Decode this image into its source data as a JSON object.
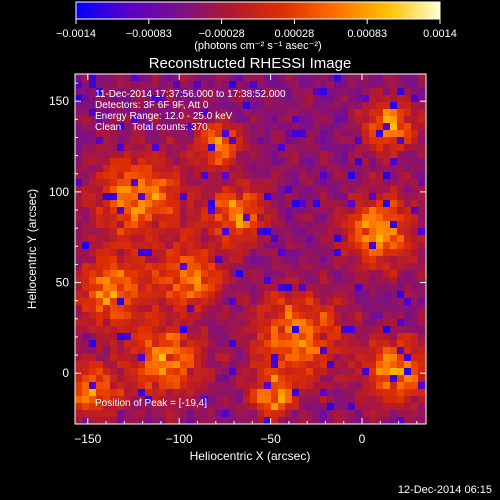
{
  "chart_data": {
    "type": "heatmap",
    "title": "Reconstructed RHESSI Image",
    "xlabel": "Heliocentric X (arcsec)",
    "ylabel": "Heliocentric Y (arcsec)",
    "x_range": [
      -157,
      35
    ],
    "y_range": [
      -28,
      165
    ],
    "x_ticks": [
      -150,
      -100,
      -50,
      0
    ],
    "y_ticks": [
      0,
      50,
      100,
      150
    ],
    "x_tick_labels": [
      "−150",
      "−100",
      "−50",
      "0"
    ],
    "y_tick_labels": [
      "0",
      "50",
      "100",
      "150"
    ],
    "colorbar": {
      "range": [
        -0.0014,
        0.0014
      ],
      "tick_labels": [
        "−0.0014",
        "−0.00083",
        "−0.00028",
        "0.00028",
        "0.00083",
        "0.0014"
      ],
      "unit_label": "(photons cm⁻² s⁻¹ asec⁻²)",
      "colors": [
        "#0000ff",
        "#5a00c8",
        "#7a1088",
        "#b01830",
        "#e03000",
        "#ff7000",
        "#ffc000",
        "#ffffd0"
      ]
    },
    "info_lines": [
      "11-Dec-2014 17:37:56.000 to 17:38:52.000",
      "Detectors: 3F 6F 9F, Att 0",
      "Energy Range: 12.0 - 25.0 keV",
      "Clean    Total counts: 370."
    ],
    "peak_label": "Position of Peak = [-19,4]",
    "peak_position": [
      -19,
      4
    ]
  },
  "footer": {
    "date": "12-Dec-2014 06:15"
  }
}
